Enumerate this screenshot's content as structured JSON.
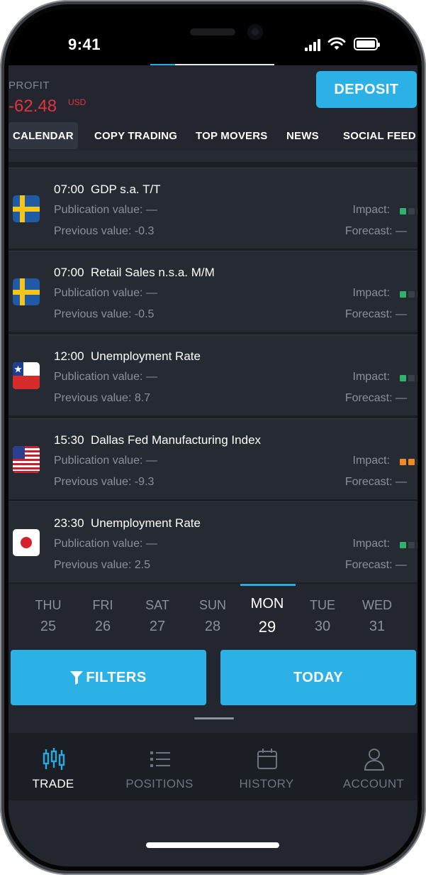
{
  "status": {
    "time": "9:41"
  },
  "header": {
    "profit_label": "PROFIT",
    "profit_value": "-62.48",
    "profit_currency": "USD",
    "deposit_label": "DEPOSIT"
  },
  "tabs": [
    {
      "label": "CALENDAR",
      "active": true
    },
    {
      "label": "COPY TRADING"
    },
    {
      "label": "TOP MOVERS"
    },
    {
      "label": "NEWS"
    },
    {
      "label": "SOCIAL FEED"
    }
  ],
  "events": [
    {
      "time": "07:00",
      "name": "GDP s.a. T/T",
      "country": "sweden-flag",
      "publication": "Publication value: —",
      "previous": "Previous value: -0.3",
      "impact_label": "Impact:",
      "impact_level": 1,
      "impact_color": "#2fb36a",
      "forecast": "Forecast: —"
    },
    {
      "time": "07:00",
      "name": "Retail Sales n.s.a. M/M",
      "country": "sweden-flag",
      "publication": "Publication value: —",
      "previous": "Previous value: -0.5",
      "impact_label": "Impact:",
      "impact_level": 1,
      "impact_color": "#2fb36a",
      "forecast": "Forecast: —"
    },
    {
      "time": "12:00",
      "name": "Unemployment Rate",
      "country": "chile-flag",
      "publication": "Publication value: —",
      "previous": "Previous value: 8.7",
      "impact_label": "Impact:",
      "impact_level": 1,
      "impact_color": "#2fb36a",
      "forecast": "Forecast: —"
    },
    {
      "time": "15:30",
      "name": "Dallas Fed Manufacturing Index",
      "country": "usa-flag",
      "publication": "Publication value: —",
      "previous": "Previous value: -9.3",
      "impact_label": "Impact:",
      "impact_level": 2,
      "impact_color": "#f08a24",
      "forecast": "Forecast: —"
    },
    {
      "time": "23:30",
      "name": "Unemployment Rate",
      "country": "japan-flag",
      "publication": "Publication value: —",
      "previous": "Previous value: 2.5",
      "impact_label": "Impact:",
      "impact_level": 1,
      "impact_color": "#2fb36a",
      "forecast": "Forecast: —"
    }
  ],
  "days": [
    {
      "name": "THU",
      "num": "25"
    },
    {
      "name": "FRI",
      "num": "26"
    },
    {
      "name": "SAT",
      "num": "27"
    },
    {
      "name": "SUN",
      "num": "28"
    },
    {
      "name": "MON",
      "num": "29",
      "selected": true
    },
    {
      "name": "TUE",
      "num": "30"
    },
    {
      "name": "WED",
      "num": "31"
    }
  ],
  "actions": {
    "filters_label": "FILTERS",
    "today_label": "TODAY"
  },
  "tabbar": [
    {
      "label": "TRADE",
      "icon": "candlestick-icon",
      "active": true
    },
    {
      "label": "POSITIONS",
      "icon": "list-icon"
    },
    {
      "label": "HISTORY",
      "icon": "calendar-icon"
    },
    {
      "label": "ACCOUNT",
      "icon": "user-icon"
    }
  ],
  "colors": {
    "accent": "#2bb1e6",
    "negative": "#e0343f",
    "background": "#23262f"
  }
}
